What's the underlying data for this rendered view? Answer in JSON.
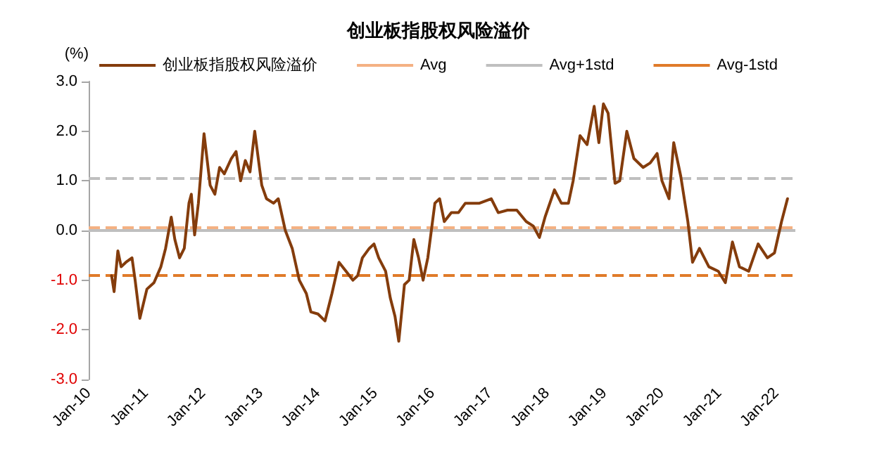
{
  "chart_data": {
    "type": "line",
    "title": "创业板指股权风险溢价",
    "ylabel": "(%)",
    "x": [
      "2010-05-27",
      "2010-06-12",
      "2010-07-06",
      "2010-07-27",
      "2010-08-26",
      "2010-10-04",
      "2010-10-24",
      "2010-11-23",
      "2011-01-07",
      "2011-02-21",
      "2011-04-06",
      "2011-05-06",
      "2011-06-11",
      "2011-07-04",
      "2011-08-03",
      "2011-09-02",
      "2011-10-02",
      "2011-10-17",
      "2011-11-07",
      "2011-12-01",
      "2012-01-06",
      "2012-02-14",
      "2012-03-15",
      "2012-04-14",
      "2012-05-14",
      "2012-06-28",
      "2012-07-28",
      "2012-08-26",
      "2012-09-25",
      "2012-10-25",
      "2012-11-24",
      "2013-01-08",
      "2013-02-07",
      "2013-03-24",
      "2013-04-23",
      "2013-06-07",
      "2013-07-21",
      "2013-09-04",
      "2013-10-19",
      "2013-11-17",
      "2014-01-01",
      "2014-02-15",
      "2014-03-31",
      "2014-05-15",
      "2014-06-29",
      "2014-08-12",
      "2014-09-11",
      "2014-10-11",
      "2014-11-24",
      "2014-12-24",
      "2015-01-23",
      "2015-03-08",
      "2015-04-07",
      "2015-05-07",
      "2015-05-31",
      "2015-07-06",
      "2015-08-05",
      "2015-09-04",
      "2015-10-04",
      "2015-11-02",
      "2015-12-02",
      "2016-01-16",
      "2016-02-15",
      "2016-03-16",
      "2016-04-30",
      "2016-06-14",
      "2016-07-28",
      "2016-10-26",
      "2017-01-09",
      "2017-02-23",
      "2017-04-23",
      "2017-06-21",
      "2017-08-20",
      "2017-10-04",
      "2017-11-12",
      "2017-12-18",
      "2018-02-16",
      "2018-04-01",
      "2018-05-16",
      "2018-06-15",
      "2018-07-29",
      "2018-09-12",
      "2018-10-27",
      "2018-11-26",
      "2018-12-25",
      "2019-01-24",
      "2019-03-09",
      "2019-04-08",
      "2019-05-23",
      "2019-07-07",
      "2019-09-04",
      "2019-10-19",
      "2019-12-02",
      "2020-01-02",
      "2020-02-16",
      "2020-03-17",
      "2020-05-01",
      "2020-06-15",
      "2020-07-15",
      "2020-08-28",
      "2020-10-27",
      "2020-12-26",
      "2021-02-09",
      "2021-03-26",
      "2021-05-10",
      "2021-07-08",
      "2021-09-06",
      "2021-11-04",
      "2021-12-19",
      "2022-02-02",
      "2022-03-12"
    ],
    "series": [
      {
        "name": "创业板指股权风险溢价",
        "color": "#843c0c",
        "values": [
          -0.91,
          -1.23,
          -0.41,
          -0.73,
          -0.64,
          -0.55,
          -1.0,
          -1.77,
          -1.18,
          -1.05,
          -0.73,
          -0.36,
          0.27,
          -0.18,
          -0.55,
          -0.36,
          0.55,
          0.73,
          -0.09,
          0.55,
          1.95,
          0.91,
          0.73,
          1.27,
          1.14,
          1.45,
          1.59,
          1.0,
          1.41,
          1.18,
          2.0,
          0.91,
          0.64,
          0.55,
          0.64,
          0.0,
          -0.36,
          -1.0,
          -1.27,
          -1.64,
          -1.68,
          -1.82,
          -1.27,
          -0.64,
          -0.82,
          -1.0,
          -0.91,
          -0.55,
          -0.36,
          -0.27,
          -0.55,
          -0.82,
          -1.36,
          -1.73,
          -2.23,
          -1.09,
          -1.0,
          -0.18,
          -0.55,
          -1.0,
          -0.55,
          0.55,
          0.64,
          0.18,
          0.36,
          0.36,
          0.55,
          0.55,
          0.64,
          0.36,
          0.41,
          0.41,
          0.18,
          0.09,
          -0.14,
          0.27,
          0.82,
          0.55,
          0.55,
          1.0,
          1.91,
          1.73,
          2.5,
          1.77,
          2.55,
          2.36,
          0.95,
          1.0,
          2.0,
          1.45,
          1.27,
          1.36,
          1.55,
          1.0,
          0.64,
          1.77,
          1.09,
          0.18,
          -0.64,
          -0.36,
          -0.73,
          -0.82,
          -1.05,
          -0.23,
          -0.73,
          -0.82,
          -0.27,
          -0.55,
          -0.45,
          0.18,
          0.64
        ]
      }
    ],
    "ref_lines": [
      {
        "axis": "y",
        "value": 0,
        "color": "#bfbfbf",
        "line_style": "solid"
      },
      {
        "axis": "y",
        "value": 0.07,
        "label": "Avg",
        "color": "#f4b183",
        "line_style": "dashed"
      },
      {
        "axis": "y",
        "value": 1.06,
        "label": "Avg+1std",
        "color": "#bfbfbf",
        "line_style": "dashed"
      },
      {
        "axis": "y",
        "value": -0.91,
        "label": "Avg-1std",
        "color": "#e07b2a",
        "line_style": "dashed"
      }
    ],
    "xlim": [
      "2010-01-01",
      "2022-05-01"
    ],
    "xticks": [
      {
        "value": "2010-01-01",
        "label": "Jan-10"
      },
      {
        "value": "2011-01-01",
        "label": "Jan-11"
      },
      {
        "value": "2012-01-01",
        "label": "Jan-12"
      },
      {
        "value": "2013-01-01",
        "label": "Jan-13"
      },
      {
        "value": "2014-01-01",
        "label": "Jan-14"
      },
      {
        "value": "2015-01-01",
        "label": "Jan-15"
      },
      {
        "value": "2016-01-01",
        "label": "Jan-16"
      },
      {
        "value": "2017-01-01",
        "label": "Jan-17"
      },
      {
        "value": "2018-01-01",
        "label": "Jan-18"
      },
      {
        "value": "2019-01-01",
        "label": "Jan-19"
      },
      {
        "value": "2020-01-01",
        "label": "Jan-20"
      },
      {
        "value": "2021-01-01",
        "label": "Jan-21"
      },
      {
        "value": "2022-01-01",
        "label": "Jan-22"
      }
    ],
    "ylim": [
      -3,
      3
    ],
    "yticks": [
      {
        "value": -3,
        "label": "-3.0"
      },
      {
        "value": -2,
        "label": "-2.0"
      },
      {
        "value": -1,
        "label": "-1.0"
      },
      {
        "value": 0,
        "label": "0.0"
      },
      {
        "value": 1,
        "label": "1.0"
      },
      {
        "value": 2,
        "label": "2.0"
      },
      {
        "value": 3,
        "label": "3.0"
      }
    ],
    "grid": false,
    "legend": "top",
    "marker": "none",
    "line_style": "solid"
  }
}
